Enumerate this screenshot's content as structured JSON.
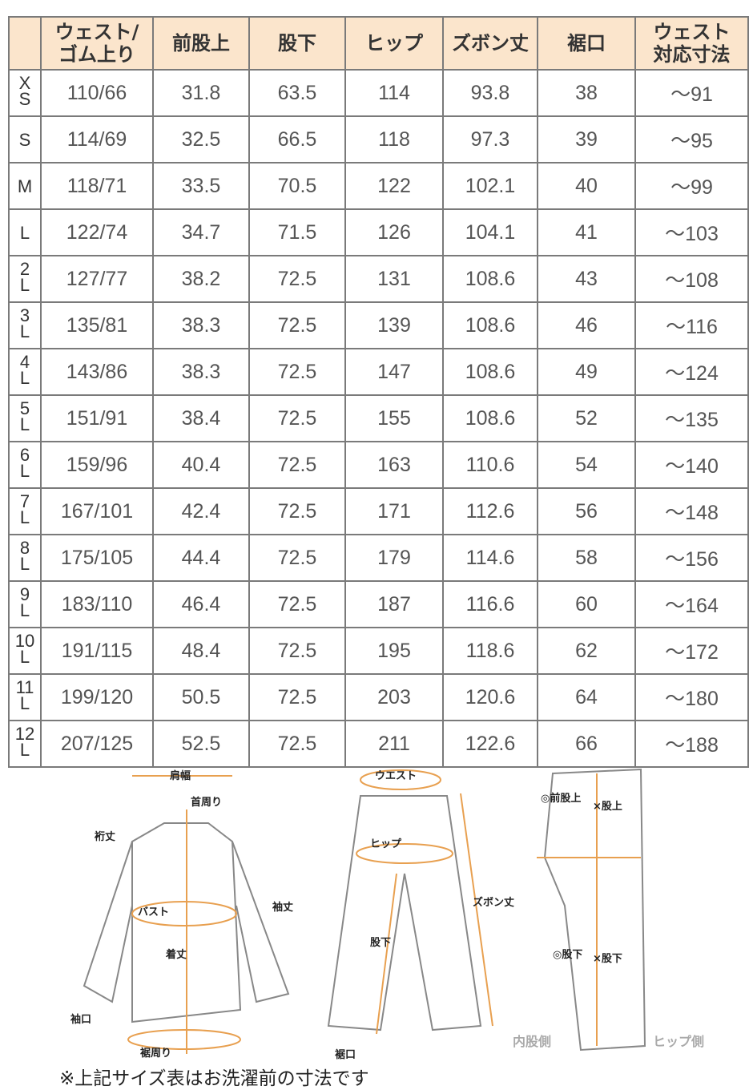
{
  "table": {
    "headers": [
      "",
      "ウェスト/ゴム上り",
      "前股上",
      "股下",
      "ヒップ",
      "ズボン丈",
      "裾口",
      "ウェスト対応寸法"
    ],
    "rows": [
      [
        "XS",
        "110/66",
        "31.8",
        "63.5",
        "114",
        "93.8",
        "38",
        "～91"
      ],
      [
        "S",
        "114/69",
        "32.5",
        "66.5",
        "118",
        "97.3",
        "39",
        "～95"
      ],
      [
        "M",
        "118/71",
        "33.5",
        "70.5",
        "122",
        "102.1",
        "40",
        "～99"
      ],
      [
        "L",
        "122/74",
        "34.7",
        "71.5",
        "126",
        "104.1",
        "41",
        "～103"
      ],
      [
        "2L",
        "127/77",
        "38.2",
        "72.5",
        "131",
        "108.6",
        "43",
        "～108"
      ],
      [
        "3L",
        "135/81",
        "38.3",
        "72.5",
        "139",
        "108.6",
        "46",
        "～116"
      ],
      [
        "4L",
        "143/86",
        "38.3",
        "72.5",
        "147",
        "108.6",
        "49",
        "～124"
      ],
      [
        "5L",
        "151/91",
        "38.4",
        "72.5",
        "155",
        "108.6",
        "52",
        "～135"
      ],
      [
        "6L",
        "159/96",
        "40.4",
        "72.5",
        "163",
        "110.6",
        "54",
        "～140"
      ],
      [
        "7L",
        "167/101",
        "42.4",
        "72.5",
        "171",
        "112.6",
        "56",
        "～148"
      ],
      [
        "8L",
        "175/105",
        "44.4",
        "72.5",
        "179",
        "114.6",
        "58",
        "～156"
      ],
      [
        "9L",
        "183/110",
        "46.4",
        "72.5",
        "187",
        "116.6",
        "60",
        "～164"
      ],
      [
        "10L",
        "191/115",
        "48.4",
        "72.5",
        "195",
        "118.6",
        "62",
        "～172"
      ],
      [
        "11L",
        "199/120",
        "50.5",
        "72.5",
        "203",
        "120.6",
        "64",
        "～180"
      ],
      [
        "12L",
        "207/125",
        "52.5",
        "72.5",
        "211",
        "122.6",
        "66",
        "～188"
      ]
    ]
  },
  "diagram": {
    "shirt_labels": [
      "肩幅",
      "首周り",
      "裄丈",
      "袖丈",
      "バスト",
      "着丈",
      "袖口",
      "裾周り"
    ],
    "pants_labels": [
      "ウエスト",
      "ヒップ",
      "ズボン丈",
      "股下",
      "裾口"
    ],
    "side_labels": [
      "◎前股上",
      "×股上",
      "◎股下",
      "×股下",
      "内股側",
      "ヒップ側"
    ]
  },
  "note": "※上記サイズ表はお洗濯前の寸法です",
  "colors": {
    "header_bg": "#fbe5cc",
    "measure_line": "#e8a050"
  }
}
